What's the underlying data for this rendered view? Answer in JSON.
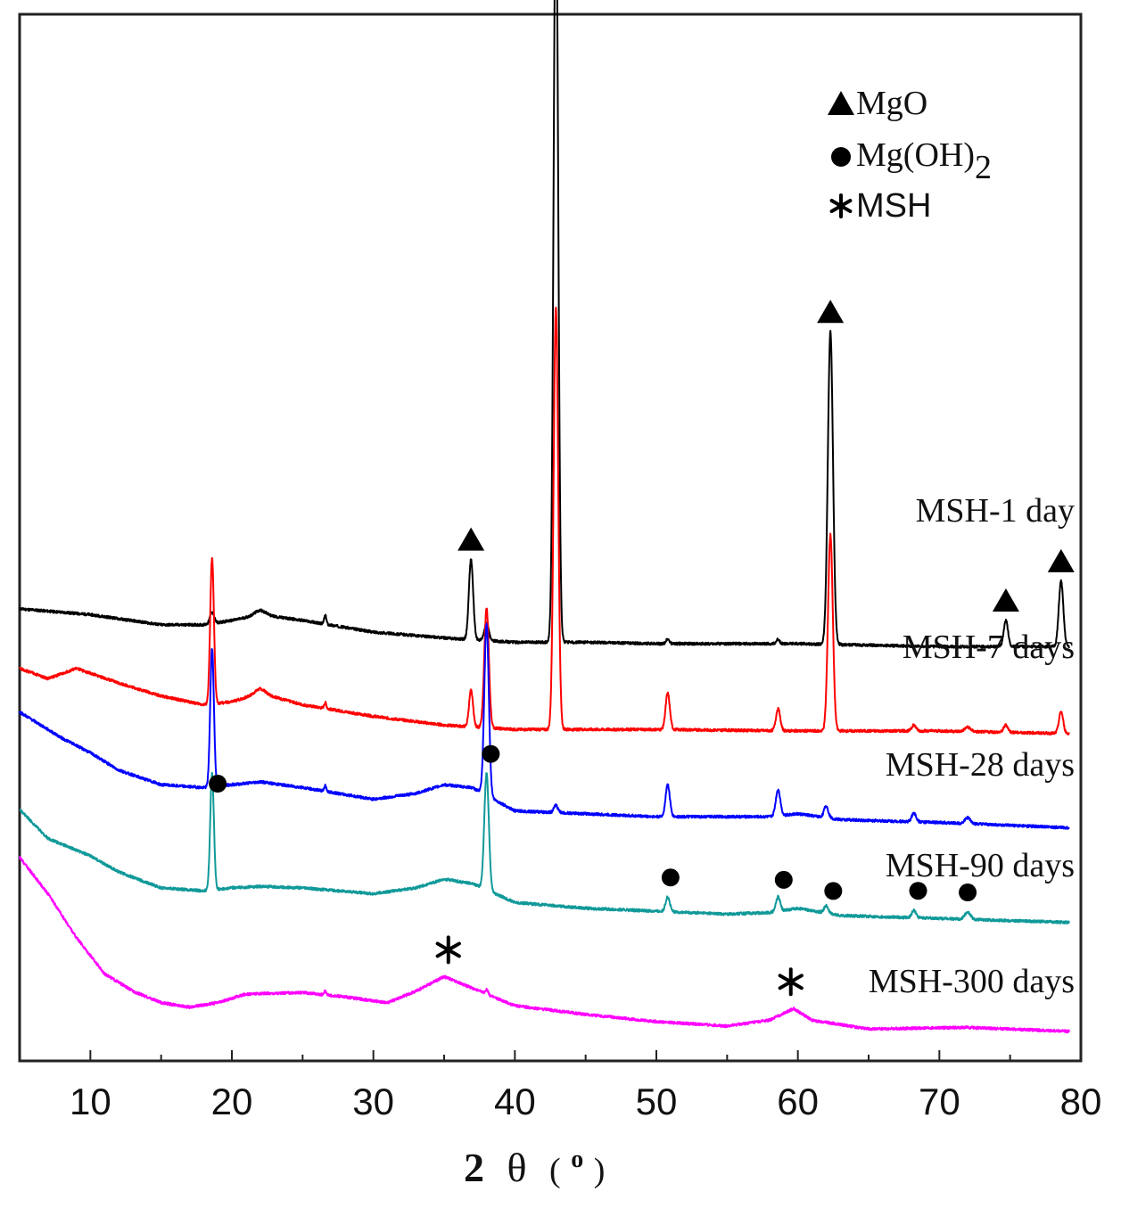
{
  "chart_data": {
    "type": "line",
    "xlabel": {
      "prefix": "2",
      "theta": "θ",
      "open": "(",
      "unit": "o",
      "close": ")"
    },
    "xlim": [
      5,
      80
    ],
    "x_ticks": [
      10,
      20,
      30,
      40,
      50,
      60,
      70,
      80
    ],
    "x_tick_labels": [
      "10",
      "20",
      "30",
      "40",
      "50",
      "60",
      "70",
      "80"
    ],
    "grid": false,
    "legend_position": "top-right",
    "legend": [
      {
        "marker": "triangle",
        "text": "MgO"
      },
      {
        "marker": "circle",
        "text": "Mg(OH)",
        "sub": "2"
      },
      {
        "marker": "asterisk",
        "text": "MSH"
      }
    ],
    "series": [
      {
        "name": "MSH-1 day",
        "color": "#000000",
        "offset": 0.6,
        "baseline": [
          [
            5,
            0.26
          ],
          [
            10,
            0.22
          ],
          [
            15,
            0.15
          ],
          [
            18,
            0.15
          ],
          [
            20,
            0.18
          ],
          [
            22,
            0.22
          ],
          [
            25,
            0.18
          ],
          [
            30,
            0.1
          ],
          [
            35,
            0.06
          ],
          [
            40,
            0.03
          ],
          [
            45,
            0.03
          ],
          [
            50,
            0.02
          ],
          [
            60,
            0.02
          ],
          [
            70,
            0.0
          ],
          [
            80,
            0.0
          ]
        ],
        "peaks": [
          [
            18.6,
            0.08,
            0.14
          ],
          [
            22,
            0.03,
            0.4
          ],
          [
            26.6,
            0.06,
            0.08
          ],
          [
            36.9,
            0.55,
            0.15
          ],
          [
            38.0,
            0.12,
            0.15
          ],
          [
            42.9,
            5.3,
            0.16
          ],
          [
            50.8,
            0.03,
            0.12
          ],
          [
            58.6,
            0.03,
            0.12
          ],
          [
            62.3,
            2.15,
            0.18
          ],
          [
            74.7,
            0.18,
            0.15
          ],
          [
            78.6,
            0.45,
            0.16
          ]
        ]
      },
      {
        "name": "MSH-7 days",
        "color": "#ff0000",
        "offset": 0.0,
        "baseline": [
          [
            5,
            0.45
          ],
          [
            7,
            0.38
          ],
          [
            9,
            0.45
          ],
          [
            12,
            0.35
          ],
          [
            15,
            0.26
          ],
          [
            18,
            0.2
          ],
          [
            20,
            0.22
          ],
          [
            22,
            0.28
          ],
          [
            25,
            0.2
          ],
          [
            30,
            0.12
          ],
          [
            35,
            0.06
          ],
          [
            40,
            0.03
          ],
          [
            45,
            0.03
          ],
          [
            50,
            0.03
          ],
          [
            60,
            0.02
          ],
          [
            70,
            0.02
          ],
          [
            80,
            0.0
          ]
        ],
        "peaks": [
          [
            18.6,
            1.0,
            0.13
          ],
          [
            22,
            0.03,
            0.4
          ],
          [
            26.6,
            0.04,
            0.08
          ],
          [
            36.9,
            0.25,
            0.14
          ],
          [
            38.0,
            0.82,
            0.16
          ],
          [
            42.9,
            2.9,
            0.16
          ],
          [
            50.8,
            0.25,
            0.15
          ],
          [
            58.6,
            0.15,
            0.15
          ],
          [
            62.3,
            1.35,
            0.17
          ],
          [
            68.2,
            0.04,
            0.15
          ],
          [
            72.0,
            0.03,
            0.2
          ],
          [
            74.7,
            0.05,
            0.15
          ],
          [
            78.6,
            0.15,
            0.15
          ]
        ]
      },
      {
        "name": "MSH-28 days",
        "color": "#0000ff",
        "offset": -0.65,
        "baseline": [
          [
            5,
            0.8
          ],
          [
            8,
            0.62
          ],
          [
            10,
            0.52
          ],
          [
            12,
            0.4
          ],
          [
            15,
            0.3
          ],
          [
            18,
            0.28
          ],
          [
            20,
            0.3
          ],
          [
            22,
            0.32
          ],
          [
            25,
            0.28
          ],
          [
            30,
            0.2
          ],
          [
            33,
            0.24
          ],
          [
            35,
            0.3
          ],
          [
            37,
            0.28
          ],
          [
            40,
            0.12
          ],
          [
            45,
            0.1
          ],
          [
            50,
            0.08
          ],
          [
            55,
            0.08
          ],
          [
            58,
            0.08
          ],
          [
            60,
            0.1
          ],
          [
            63,
            0.06
          ],
          [
            70,
            0.04
          ],
          [
            80,
            0.0
          ]
        ],
        "peaks": [
          [
            18.6,
            0.95,
            0.13
          ],
          [
            26.6,
            0.04,
            0.08
          ],
          [
            38.0,
            1.18,
            0.16
          ],
          [
            42.9,
            0.05,
            0.14
          ],
          [
            50.8,
            0.22,
            0.15
          ],
          [
            58.6,
            0.18,
            0.16
          ],
          [
            62.0,
            0.08,
            0.15
          ],
          [
            68.2,
            0.06,
            0.15
          ],
          [
            72.0,
            0.04,
            0.2
          ]
        ]
      },
      {
        "name": "MSH-90 days",
        "color": "#119999",
        "offset": -1.3,
        "baseline": [
          [
            5,
            0.78
          ],
          [
            7,
            0.58
          ],
          [
            10,
            0.46
          ],
          [
            12,
            0.35
          ],
          [
            15,
            0.24
          ],
          [
            18,
            0.22
          ],
          [
            20,
            0.24
          ],
          [
            22,
            0.25
          ],
          [
            25,
            0.24
          ],
          [
            30,
            0.2
          ],
          [
            33,
            0.24
          ],
          [
            35,
            0.3
          ],
          [
            37,
            0.27
          ],
          [
            40,
            0.14
          ],
          [
            45,
            0.1
          ],
          [
            50,
            0.08
          ],
          [
            55,
            0.06
          ],
          [
            58,
            0.07
          ],
          [
            60,
            0.1
          ],
          [
            63,
            0.05
          ],
          [
            70,
            0.03
          ],
          [
            80,
            0.0
          ]
        ],
        "peaks": [
          [
            18.6,
            0.8,
            0.13
          ],
          [
            38.0,
            0.8,
            0.16
          ],
          [
            50.8,
            0.1,
            0.15
          ],
          [
            58.6,
            0.1,
            0.15
          ],
          [
            62.0,
            0.05,
            0.15
          ],
          [
            68.2,
            0.05,
            0.15
          ],
          [
            72.0,
            0.05,
            0.2
          ]
        ]
      },
      {
        "name": "MSH-300 days",
        "color": "#ff00ff",
        "offset": -2.05,
        "baseline": [
          [
            5,
            1.2
          ],
          [
            7,
            0.95
          ],
          [
            9,
            0.65
          ],
          [
            11,
            0.4
          ],
          [
            13,
            0.28
          ],
          [
            15,
            0.2
          ],
          [
            17,
            0.17
          ],
          [
            19,
            0.2
          ],
          [
            21,
            0.26
          ],
          [
            25,
            0.27
          ],
          [
            28,
            0.24
          ],
          [
            31,
            0.2
          ],
          [
            33,
            0.28
          ],
          [
            35,
            0.38
          ],
          [
            37,
            0.3
          ],
          [
            40,
            0.18
          ],
          [
            45,
            0.12
          ],
          [
            50,
            0.07
          ],
          [
            55,
            0.04
          ],
          [
            58,
            0.08
          ],
          [
            59.7,
            0.16
          ],
          [
            61,
            0.08
          ],
          [
            65,
            0.02
          ],
          [
            72,
            0.03
          ],
          [
            80,
            0.0
          ]
        ],
        "peaks": [
          [
            26.6,
            0.03,
            0.08
          ],
          [
            38,
            0.03,
            0.1
          ]
        ]
      }
    ],
    "annotations": [
      {
        "marker": "triangle",
        "x": 43.0,
        "y_on_series": "MSH-1 day"
      },
      {
        "marker": "triangle",
        "x": 62.3,
        "y_on_series": "MSH-1 day"
      },
      {
        "marker": "triangle",
        "x": 36.9,
        "y_on_series": "MSH-1 day"
      },
      {
        "marker": "triangle",
        "x": 74.7,
        "y_on_series": "MSH-1 day"
      },
      {
        "marker": "triangle",
        "x": 78.6,
        "y_on_series": "MSH-1 day"
      },
      {
        "marker": "circle",
        "x": 19.0,
        "y_on_series": "MSH-90 days"
      },
      {
        "marker": "circle",
        "x": 38.3,
        "y_on_series": "MSH-90 days"
      },
      {
        "marker": "circle",
        "x": 51.0,
        "y_on_series": "MSH-90 days"
      },
      {
        "marker": "circle",
        "x": 59.0,
        "y_on_series": "MSH-90 days"
      },
      {
        "marker": "circle",
        "x": 62.5,
        "y_on_series": "MSH-90 days"
      },
      {
        "marker": "circle",
        "x": 68.5,
        "y_on_series": "MSH-90 days"
      },
      {
        "marker": "circle",
        "x": 72.0,
        "y_on_series": "MSH-90 days"
      },
      {
        "marker": "asterisk",
        "x": 35.3,
        "y_on_series": "MSH-300 days"
      },
      {
        "marker": "asterisk",
        "x": 59.5,
        "y_on_series": "MSH-300 days"
      }
    ]
  }
}
